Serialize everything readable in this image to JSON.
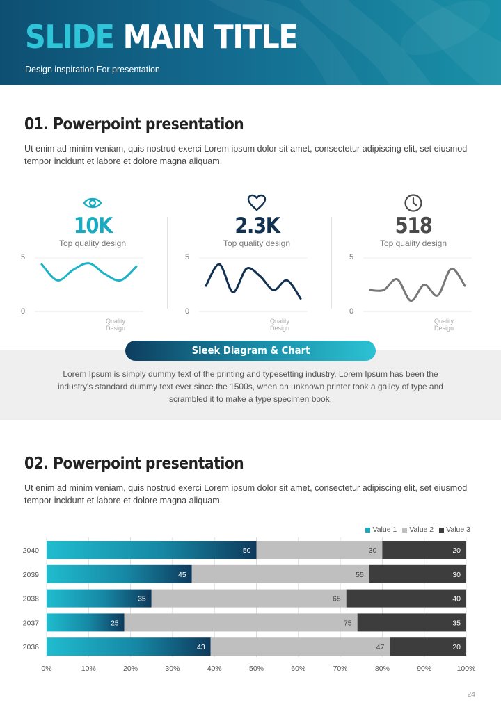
{
  "header": {
    "title_part1": "SLIDE",
    "title_part2": "MAIN TITLE",
    "subtitle": "Design inspiration For presentation"
  },
  "section1": {
    "title": "01. Powerpoint presentation",
    "body": "Ut enim ad minim veniam, quis nostrud exerci  Lorem ipsum dolor sit amet, consectetur adipiscing elit, set eiusmod tempor incidunt  et labore et dolore magna aliquam."
  },
  "stats": [
    {
      "icon": "eye-icon",
      "value": "10K",
      "label": "Top quality design",
      "color": "#1aabc0"
    },
    {
      "icon": "heart-icon",
      "value": "2.3K",
      "label": "Top quality design",
      "color": "#12304f"
    },
    {
      "icon": "clock-icon",
      "value": "518",
      "label": "Top quality design",
      "color": "#4a4a4a"
    }
  ],
  "sparklines": [
    {
      "color": "#1cb3c6",
      "ymax_label": "5",
      "ymin_label": "0",
      "caption": "Quality Design",
      "y": [
        4.4,
        2.9,
        3.9,
        4.5,
        3.5,
        2.9,
        4.2
      ]
    },
    {
      "color": "#12304f",
      "ymax_label": "5",
      "ymin_label": "0",
      "caption": "Quality Design",
      "y": [
        2.4,
        4.4,
        1.8,
        4.0,
        3.3,
        2.0,
        2.9,
        1.2
      ]
    },
    {
      "color": "#777777",
      "ymax_label": "5",
      "ymin_label": "0",
      "caption": "Quality Design",
      "y": [
        2.0,
        2.0,
        3.0,
        1.0,
        2.5,
        1.5,
        4.0,
        2.4
      ]
    }
  ],
  "band": {
    "pill_label": "Sleek Diagram & Chart",
    "text": "Lorem Ipsum is simply dummy text of the printing and typesetting industry. Lorem Ipsum has been the industry's standard dummy text ever since the 1500s, when an unknown printer took a galley of type and scrambled it to make a type specimen book."
  },
  "section2": {
    "title": "02. Powerpoint presentation",
    "body": "Ut enim ad minim veniam, quis nostrud exerci  Lorem ipsum dolor sit amet, consectetur adipiscing elit, set eiusmod tempor incidunt  et labore et dolore magna aliquam."
  },
  "chart_data": {
    "type": "bar",
    "orientation": "horizontal",
    "stacked": "percent",
    "categories": [
      "2040",
      "2039",
      "2038",
      "2037",
      "2036"
    ],
    "series": [
      {
        "name": "Value  1",
        "values": [
          50,
          45,
          35,
          25,
          43
        ],
        "color": "#1aabc0"
      },
      {
        "name": "Value  2",
        "values": [
          30,
          55,
          65,
          75,
          47
        ],
        "color": "#bfbfbf"
      },
      {
        "name": "Value 3",
        "values": [
          20,
          30,
          40,
          35,
          20
        ],
        "color": "#3d3d3d"
      }
    ],
    "x_ticks": [
      "0%",
      "10%",
      "20%",
      "30%",
      "40%",
      "50%",
      "60%",
      "70%",
      "80%",
      "90%",
      "100%"
    ],
    "xlim": [
      0,
      100
    ],
    "grid": true,
    "legend": "top-right"
  },
  "page_number": "24"
}
